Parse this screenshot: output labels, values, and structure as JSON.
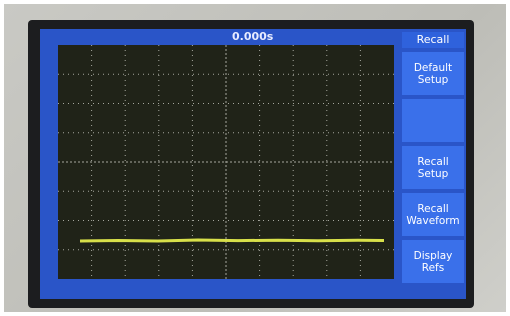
{
  "top_bar": {
    "timebase": "0.000s"
  },
  "menu": {
    "title": "Recall",
    "buttons": [
      "Default Setup",
      "Recall Setup",
      "Recall Waveform",
      "Display Refs"
    ]
  }
}
